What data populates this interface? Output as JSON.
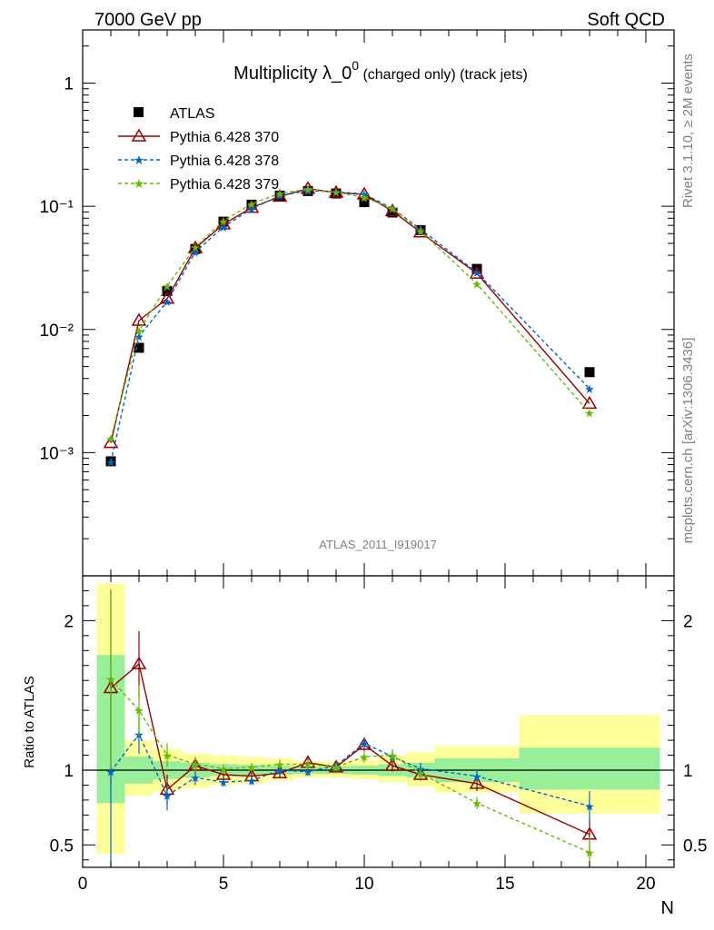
{
  "header": {
    "left": "7000 GeV pp",
    "right": "Soft QCD"
  },
  "side_labels": {
    "rivet": "Rivet 3.1.10, ≥ 2M events",
    "mcplots": "mcplots.cern.ch [arXiv:1306.3436]"
  },
  "chart_data": [
    {
      "type": "scatter",
      "title": "Multiplicity λ_0",
      "title_sup": "0",
      "title_suffix": " (charged only) (track jets)",
      "analysis_label": "ATLAS_2011_I919017",
      "y_scale": "log",
      "xlim": [
        0,
        21
      ],
      "ylim": [
        0.0001,
        2.7
      ],
      "y_tick_labels": [
        "10⁻³",
        "10⁻²",
        "10⁻¹",
        "1"
      ],
      "legend_position": "top-left",
      "series": [
        {
          "name": "ATLAS",
          "color": "#000000",
          "marker": "square",
          "x": [
            1,
            2,
            3,
            4,
            5,
            6,
            7,
            8,
            9,
            10,
            11,
            12,
            14,
            18
          ],
          "y": [
            0.00085,
            0.0071,
            0.0205,
            0.045,
            0.075,
            0.103,
            0.122,
            0.133,
            0.127,
            0.108,
            0.089,
            0.064,
            0.031,
            0.0045
          ]
        },
        {
          "name": "Pythia 6.428 370",
          "color": "#990000",
          "marker": "triangle-open",
          "line": "solid",
          "x": [
            1,
            2,
            3,
            4,
            5,
            6,
            7,
            8,
            9,
            10,
            11,
            12,
            14,
            18
          ],
          "y": [
            0.0012,
            0.0118,
            0.0178,
            0.0458,
            0.0715,
            0.0975,
            0.12,
            0.139,
            0.129,
            0.125,
            0.0915,
            0.0615,
            0.0285,
            0.0025
          ]
        },
        {
          "name": "Pythia 6.428 378",
          "color": "#0066cc",
          "marker": "star",
          "line": "dashed",
          "x": [
            1,
            2,
            3,
            4,
            5,
            6,
            7,
            8,
            9,
            10,
            11,
            12,
            14,
            18
          ],
          "y": [
            0.00084,
            0.0088,
            0.0168,
            0.0426,
            0.068,
            0.0955,
            0.122,
            0.134,
            0.131,
            0.126,
            0.096,
            0.065,
            0.029,
            0.0033
          ]
        },
        {
          "name": "Pythia 6.428 379",
          "color": "#66bb00",
          "marker": "star",
          "line": "dashed",
          "x": [
            1,
            2,
            3,
            4,
            5,
            6,
            7,
            8,
            9,
            10,
            11,
            12,
            14,
            18
          ],
          "y": [
            0.0013,
            0.0098,
            0.0225,
            0.0465,
            0.076,
            0.105,
            0.127,
            0.138,
            0.13,
            0.118,
            0.096,
            0.063,
            0.0235,
            0.0021
          ]
        }
      ]
    },
    {
      "type": "scatter",
      "ylabel": "Ratio to ATLAS",
      "xlabel": "N",
      "xlim": [
        0,
        21
      ],
      "ylim": [
        0.35,
        2.3
      ],
      "x_ticks": [
        0,
        5,
        10,
        15,
        20
      ],
      "y_ticks": [
        0.5,
        1,
        2
      ],
      "reference_line": 1,
      "bands": {
        "stat_color": "#99ee99",
        "total_color": "#ffff99",
        "bins": [
          {
            "x0": 0.5,
            "x1": 1.5,
            "stat": [
              0.78,
              1.77
            ],
            "total": [
              0.44,
              2.25
            ]
          },
          {
            "x0": 1.5,
            "x1": 2.5,
            "stat": [
              0.91,
              1.09
            ],
            "total": [
              0.83,
              1.2
            ]
          },
          {
            "x0": 2.5,
            "x1": 3.5,
            "stat": [
              0.94,
              1.06
            ],
            "total": [
              0.86,
              1.14
            ]
          },
          {
            "x0": 3.5,
            "x1": 4.5,
            "stat": [
              0.95,
              1.05
            ],
            "total": [
              0.88,
              1.11
            ]
          },
          {
            "x0": 4.5,
            "x1": 5.5,
            "stat": [
              0.96,
              1.04
            ],
            "total": [
              0.9,
              1.1
            ]
          },
          {
            "x0": 5.5,
            "x1": 6.5,
            "stat": [
              0.965,
              1.035
            ],
            "total": [
              0.91,
              1.09
            ]
          },
          {
            "x0": 6.5,
            "x1": 7.5,
            "stat": [
              0.97,
              1.03
            ],
            "total": [
              0.93,
              1.08
            ]
          },
          {
            "x0": 7.5,
            "x1": 8.5,
            "stat": [
              0.975,
              1.025
            ],
            "total": [
              0.95,
              1.06
            ]
          },
          {
            "x0": 8.5,
            "x1": 9.5,
            "stat": [
              0.975,
              1.025
            ],
            "total": [
              0.95,
              1.06
            ]
          },
          {
            "x0": 9.5,
            "x1": 10.5,
            "stat": [
              0.97,
              1.03
            ],
            "total": [
              0.94,
              1.07
            ]
          },
          {
            "x0": 10.5,
            "x1": 11.5,
            "stat": [
              0.96,
              1.04
            ],
            "total": [
              0.92,
              1.1
            ]
          },
          {
            "x0": 11.5,
            "x1": 12.5,
            "stat": [
              0.95,
              1.05
            ],
            "total": [
              0.89,
              1.12
            ]
          },
          {
            "x0": 12.5,
            "x1": 15.5,
            "stat": [
              0.92,
              1.08
            ],
            "total": [
              0.85,
              1.16
            ]
          },
          {
            "x0": 15.5,
            "x1": 20.5,
            "stat": [
              0.87,
              1.15
            ],
            "total": [
              0.71,
              1.37
            ]
          }
        ]
      },
      "series": [
        {
          "name": "Pythia 6.428 370",
          "color": "#990000",
          "marker": "triangle-open",
          "line": "solid",
          "x": [
            1,
            2,
            3,
            4,
            5,
            6,
            7,
            8,
            9,
            10,
            11,
            12,
            14,
            18
          ],
          "y": [
            1.55,
            1.71,
            0.87,
            1.03,
            0.97,
            0.96,
            0.98,
            1.05,
            1.02,
            1.17,
            1.03,
            0.97,
            0.91,
            0.57
          ],
          "err": [
            0.65,
            0.22,
            0.1,
            0.05,
            0.03,
            0.03,
            0.03,
            0.03,
            0.03,
            0.04,
            0.04,
            0.04,
            0.05,
            0.1
          ]
        },
        {
          "name": "Pythia 6.428 378",
          "color": "#0066cc",
          "marker": "star",
          "line": "dashed",
          "x": [
            1,
            2,
            3,
            4,
            5,
            6,
            7,
            8,
            9,
            10,
            11,
            12,
            14,
            18
          ],
          "y": [
            0.99,
            1.24,
            0.83,
            0.95,
            0.92,
            0.93,
            1.0,
            0.99,
            1.03,
            1.18,
            1.09,
            1.01,
            0.96,
            0.76
          ],
          "err": [
            0.65,
            0.13,
            0.1,
            0.05,
            0.03,
            0.03,
            0.03,
            0.03,
            0.03,
            0.04,
            0.04,
            0.04,
            0.04,
            0.1
          ]
        },
        {
          "name": "Pythia 6.428 379",
          "color": "#66bb00",
          "marker": "star",
          "line": "dashed",
          "x": [
            1,
            2,
            3,
            4,
            5,
            6,
            7,
            8,
            9,
            10,
            11,
            12,
            14,
            18
          ],
          "y": [
            1.61,
            1.4,
            1.1,
            1.04,
            1.01,
            1.02,
            1.04,
            1.04,
            1.02,
            1.09,
            1.1,
            0.98,
            0.78,
            0.45
          ],
          "err": [
            0.6,
            0.17,
            0.08,
            0.05,
            0.03,
            0.03,
            0.03,
            0.03,
            0.03,
            0.04,
            0.04,
            0.04,
            0.04,
            0.1
          ]
        }
      ]
    }
  ]
}
